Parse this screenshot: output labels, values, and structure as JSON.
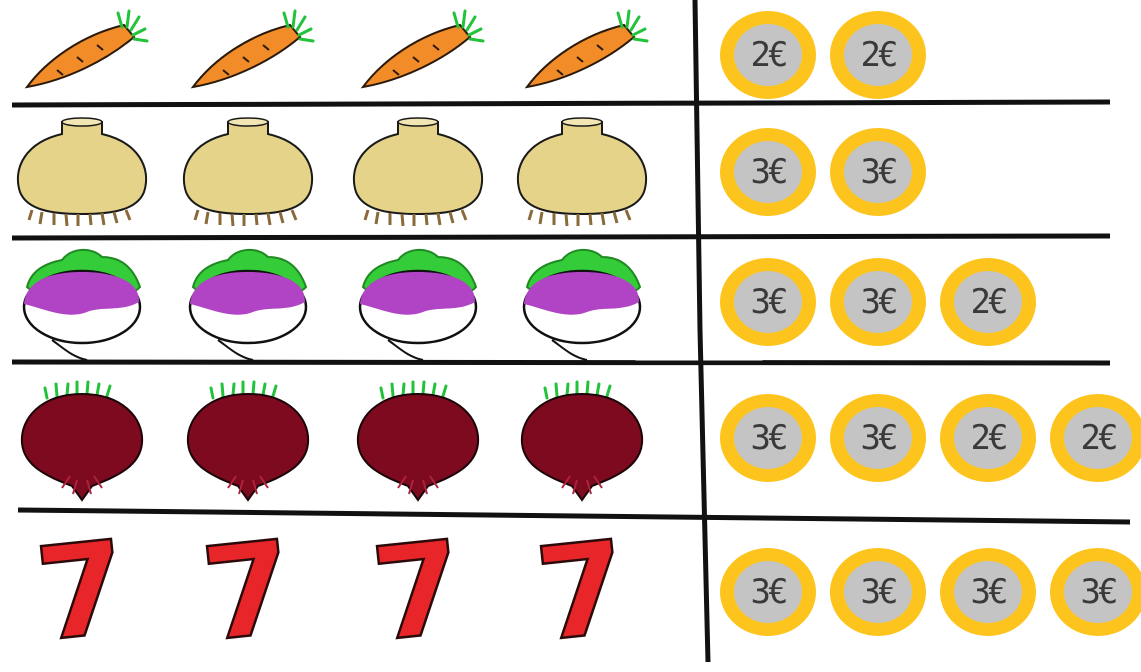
{
  "rows": [
    {
      "item": "carrot-icon",
      "count": 4,
      "coins": [
        "2€",
        "2€"
      ]
    },
    {
      "item": "onion-icon",
      "count": 4,
      "coins": [
        "3€",
        "3€"
      ]
    },
    {
      "item": "turnip-icon",
      "count": 4,
      "coins": [
        "3€",
        "3€",
        "2€"
      ]
    },
    {
      "item": "beet-icon",
      "count": 4,
      "coins": [
        "3€",
        "3€",
        "2€",
        "2€"
      ]
    },
    {
      "item": "seven-icon",
      "count": 4,
      "symbol": "7",
      "coins": [
        "3€",
        "3€",
        "3€",
        "3€"
      ]
    }
  ],
  "colors": {
    "carrot": "#f28c28",
    "carrot_leaves": "#22c23a",
    "onion": "#e6d38a",
    "onion_roots": "#8a6a3a",
    "turnip_top": "#b044c4",
    "turnip_leaves": "#35cc3a",
    "beet": "#7d0a1e",
    "seven": "#e8262a",
    "coin_rim": "#fcc41c",
    "coin_center": "#c4c4c4",
    "grid": "#111111"
  }
}
